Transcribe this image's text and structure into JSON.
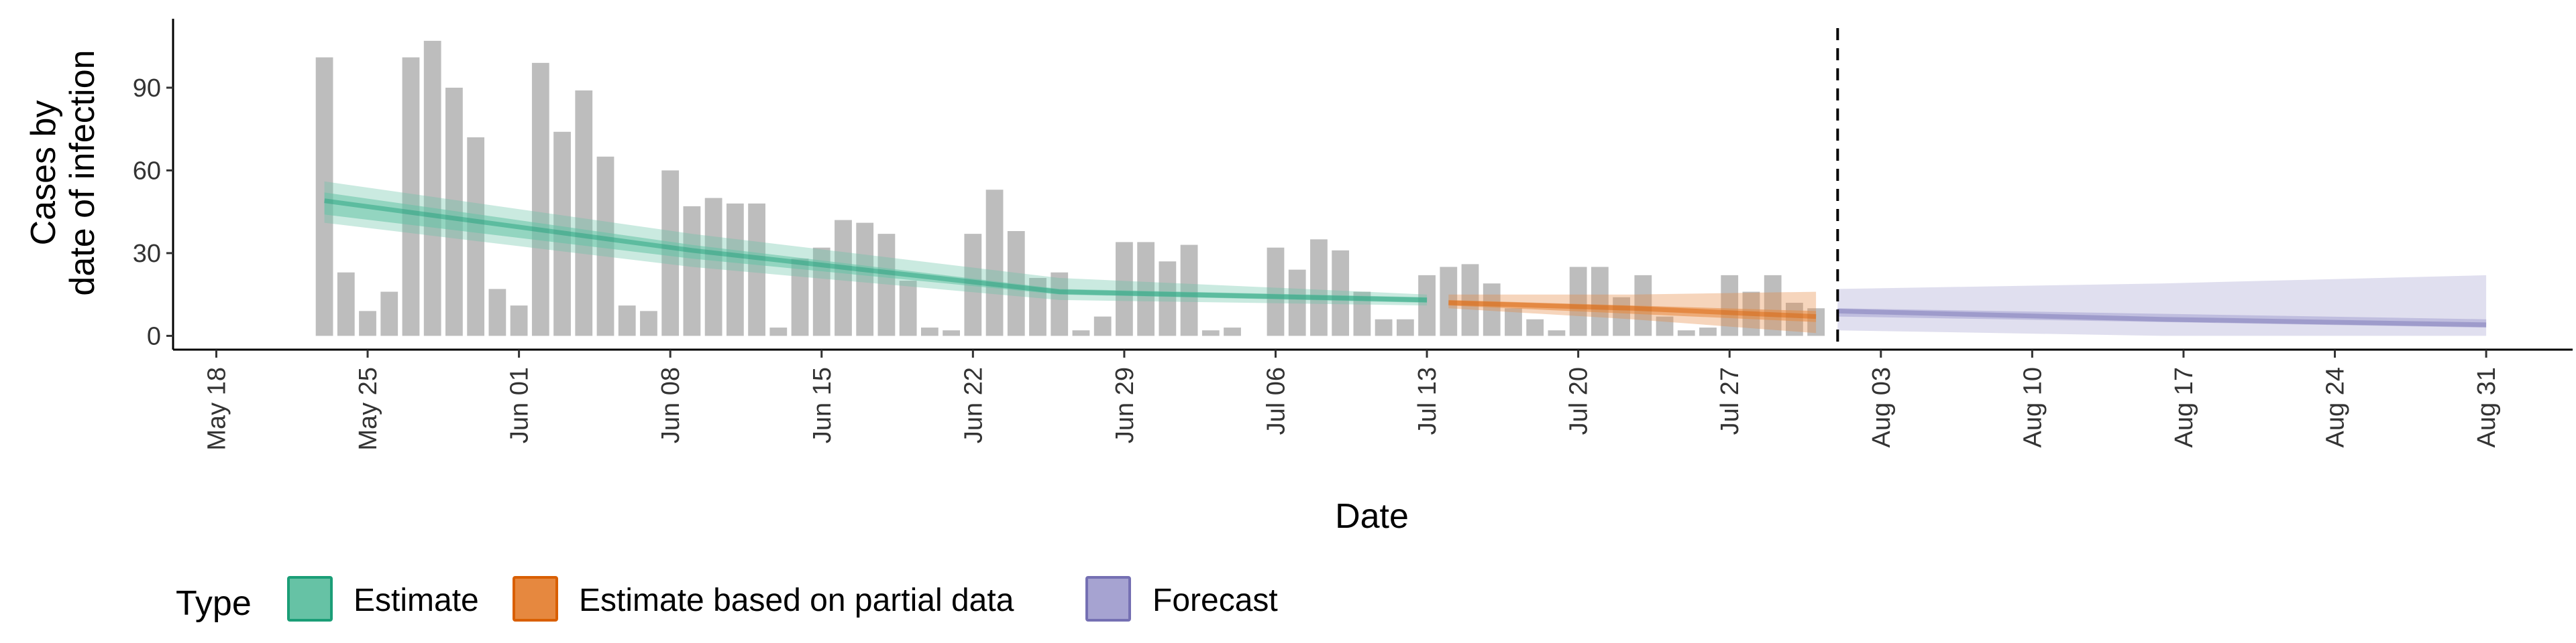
{
  "chart_data": {
    "type": "bar",
    "xlabel": "Date",
    "ylabel_lines": [
      "Cases by",
      "date of infection"
    ],
    "ylim": [
      -5,
      115
    ],
    "y_ticks": [
      0,
      30,
      60,
      90
    ],
    "x_range": [
      "2020-05-16",
      "2020-09-04"
    ],
    "x_ticks": [
      {
        "date": "2020-05-18",
        "label": "May 18"
      },
      {
        "date": "2020-05-25",
        "label": "May 25"
      },
      {
        "date": "2020-06-01",
        "label": "Jun 01"
      },
      {
        "date": "2020-06-08",
        "label": "Jun 08"
      },
      {
        "date": "2020-06-15",
        "label": "Jun 15"
      },
      {
        "date": "2020-06-22",
        "label": "Jun 22"
      },
      {
        "date": "2020-06-29",
        "label": "Jun 29"
      },
      {
        "date": "2020-07-06",
        "label": "Jul 06"
      },
      {
        "date": "2020-07-13",
        "label": "Jul 13"
      },
      {
        "date": "2020-07-20",
        "label": "Jul 20"
      },
      {
        "date": "2020-07-27",
        "label": "Jul 27"
      },
      {
        "date": "2020-08-03",
        "label": "Aug 03"
      },
      {
        "date": "2020-08-10",
        "label": "Aug 10"
      },
      {
        "date": "2020-08-17",
        "label": "Aug 17"
      },
      {
        "date": "2020-08-24",
        "label": "Aug 24"
      },
      {
        "date": "2020-08-31",
        "label": "Aug 31"
      }
    ],
    "bars": {
      "start_date": "2020-05-23",
      "color": "#bdbdbd",
      "values": [
        101,
        23,
        9,
        16,
        101,
        107,
        90,
        72,
        17,
        11,
        99,
        74,
        89,
        65,
        11,
        9,
        60,
        47,
        50,
        48,
        48,
        3,
        28,
        32,
        42,
        41,
        37,
        20,
        3,
        2,
        37,
        53,
        38,
        21,
        23,
        2,
        7,
        34,
        34,
        27,
        33,
        2,
        3,
        0,
        32,
        24,
        35,
        31,
        16,
        6,
        6,
        22,
        25,
        26,
        19,
        10,
        6,
        2,
        25,
        25,
        14,
        22,
        7,
        2,
        3,
        22,
        16,
        22,
        12,
        10
      ]
    },
    "vline_date": "2020-08-01",
    "series": [
      {
        "name": "Estimate",
        "color": "#1b9e77",
        "fill": "#66c2a5",
        "start_date": "2020-05-23",
        "end_date": "2020-07-13",
        "median": [
          49,
          31,
          16,
          13
        ],
        "inner_lo": [
          44,
          28,
          15,
          12
        ],
        "inner_hi": [
          52,
          33,
          17,
          14
        ],
        "outer_lo": [
          41,
          25,
          13,
          11
        ],
        "outer_hi": [
          56,
          37,
          21,
          15
        ]
      },
      {
        "name": "Estimate based on partial data",
        "color": "#d95f02",
        "fill": "#e6883f",
        "start_date": "2020-07-14",
        "end_date": "2020-07-31",
        "median": [
          12,
          10,
          7
        ],
        "inner_lo": [
          11,
          8,
          5
        ],
        "inner_hi": [
          13,
          11,
          9
        ],
        "outer_lo": [
          10,
          6,
          1
        ],
        "outer_hi": [
          15,
          15,
          16
        ]
      },
      {
        "name": "Forecast",
        "color": "#7570b3",
        "fill": "#a6a3d1",
        "start_date": "2020-08-01",
        "end_date": "2020-08-31",
        "median": [
          9,
          6,
          4
        ],
        "inner_lo": [
          7,
          5,
          3
        ],
        "inner_hi": [
          10,
          8,
          6
        ],
        "outer_lo": [
          2,
          0,
          0
        ],
        "outer_hi": [
          17,
          19,
          22
        ]
      }
    ],
    "legend": {
      "title": "Type",
      "placement": "bottom"
    }
  }
}
